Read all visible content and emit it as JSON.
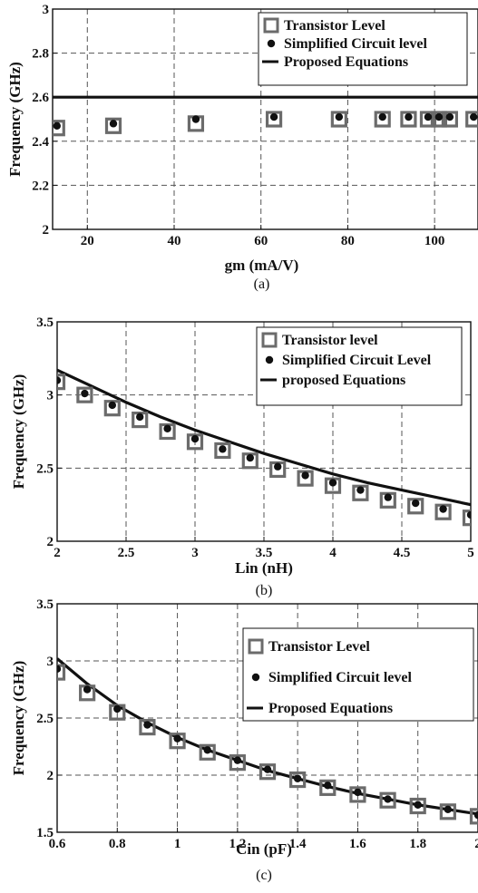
{
  "chart_data": [
    {
      "type": "scatter",
      "caption": "(a)",
      "xlabel": "gm (mA/V)",
      "ylabel": "Frequency (GHz)",
      "xlim": [
        12,
        110
      ],
      "ylim": [
        2,
        3
      ],
      "xticks": [
        20,
        40,
        60,
        80,
        100
      ],
      "yticks": [
        2,
        2.2,
        2.4,
        2.6,
        2.8,
        3
      ],
      "xtick_labels": [
        "20",
        "40",
        "60",
        "80",
        "100"
      ],
      "ytick_labels": [
        "2",
        "2.2",
        "2.4",
        "2.6",
        "2.8",
        "3"
      ],
      "grid": true,
      "legend_position": "top-right",
      "series": [
        {
          "name": "Transistor Level",
          "marker": "hollow-square",
          "color": "#6b6b6b",
          "x": [
            13,
            26,
            45,
            63,
            78,
            88,
            94,
            98.5,
            101,
            103.5,
            109
          ],
          "y": [
            2.46,
            2.47,
            2.48,
            2.5,
            2.5,
            2.5,
            2.5,
            2.5,
            2.5,
            2.5,
            2.5
          ]
        },
        {
          "name": "Simplified Circuit level",
          "marker": "dot",
          "color": "#111111",
          "x": [
            13,
            26,
            45,
            63,
            78,
            88,
            94,
            98.5,
            101,
            103.5,
            109
          ],
          "y": [
            2.47,
            2.48,
            2.5,
            2.51,
            2.51,
            2.51,
            2.51,
            2.51,
            2.51,
            2.51,
            2.51
          ]
        },
        {
          "name": "Proposed Equations",
          "marker": "line",
          "color": "#111111",
          "x": [
            12,
            110
          ],
          "y": [
            2.6,
            2.6
          ]
        }
      ]
    },
    {
      "type": "scatter",
      "caption": "(b)",
      "xlabel": "Lin (nH)",
      "ylabel": "Frequency (GHz)",
      "xlim": [
        2,
        5
      ],
      "ylim": [
        2,
        3.5
      ],
      "xticks": [
        2,
        2.5,
        3,
        3.5,
        4,
        4.5,
        5
      ],
      "yticks": [
        2,
        2.5,
        3,
        3.5
      ],
      "xtick_labels": [
        "2",
        "2.5",
        "3",
        "3.5",
        "4",
        "4.5",
        "5"
      ],
      "ytick_labels": [
        "2",
        "2.5",
        "3",
        "3.5"
      ],
      "grid": true,
      "legend_position": "top-right",
      "series": [
        {
          "name": "Transistor level",
          "marker": "hollow-square",
          "color": "#6b6b6b",
          "x": [
            2,
            2.2,
            2.4,
            2.6,
            2.8,
            3,
            3.2,
            3.4,
            3.6,
            3.8,
            4,
            4.2,
            4.4,
            4.6,
            4.8,
            5
          ],
          "y": [
            3.09,
            3.0,
            2.91,
            2.83,
            2.75,
            2.68,
            2.62,
            2.55,
            2.49,
            2.43,
            2.38,
            2.33,
            2.28,
            2.24,
            2.2,
            2.16
          ]
        },
        {
          "name": "Simplified Circuit Level",
          "marker": "dot",
          "color": "#111111",
          "x": [
            2,
            2.2,
            2.4,
            2.6,
            2.8,
            3,
            3.2,
            3.4,
            3.6,
            3.8,
            4,
            4.2,
            4.4,
            4.6,
            4.8,
            5
          ],
          "y": [
            3.1,
            3.01,
            2.93,
            2.85,
            2.77,
            2.7,
            2.63,
            2.57,
            2.51,
            2.45,
            2.4,
            2.35,
            2.3,
            2.26,
            2.22,
            2.18
          ]
        },
        {
          "name": "proposed Equations",
          "marker": "line",
          "color": "#111111",
          "x": [
            2,
            2.25,
            2.5,
            2.75,
            3,
            3.25,
            3.5,
            3.75,
            4,
            4.25,
            4.5,
            4.75,
            5
          ],
          "y": [
            3.17,
            3.06,
            2.95,
            2.85,
            2.76,
            2.68,
            2.6,
            2.53,
            2.46,
            2.4,
            2.35,
            2.3,
            2.25
          ]
        }
      ]
    },
    {
      "type": "scatter",
      "caption": "(c)",
      "xlabel": "Cin (pF)",
      "ylabel": "Frequency (GHz)",
      "xlim": [
        0.6,
        2
      ],
      "ylim": [
        1.5,
        3.5
      ],
      "xticks": [
        0.6,
        0.8,
        1,
        1.2,
        1.4,
        1.6,
        1.8,
        2
      ],
      "yticks": [
        1.5,
        2,
        2.5,
        3,
        3.5
      ],
      "xtick_labels": [
        "0.6",
        "0.8",
        "1",
        "1.2",
        "1.4",
        "1.6",
        "1.8",
        "2"
      ],
      "ytick_labels": [
        "1.5",
        "2",
        "2.5",
        "3",
        "3.5"
      ],
      "grid": true,
      "legend_position": "top-right",
      "series": [
        {
          "name": "Transistor Level",
          "marker": "hollow-square",
          "color": "#6b6b6b",
          "x": [
            0.6,
            0.7,
            0.8,
            0.9,
            1,
            1.1,
            1.2,
            1.3,
            1.4,
            1.5,
            1.6,
            1.7,
            1.8,
            1.9,
            2
          ],
          "y": [
            2.9,
            2.72,
            2.55,
            2.42,
            2.3,
            2.2,
            2.11,
            2.03,
            1.96,
            1.89,
            1.83,
            1.78,
            1.73,
            1.68,
            1.64
          ]
        },
        {
          "name": "Simplified Circuit level",
          "marker": "dot",
          "color": "#111111",
          "x": [
            0.6,
            0.7,
            0.8,
            0.9,
            1,
            1.1,
            1.2,
            1.3,
            1.4,
            1.5,
            1.6,
            1.7,
            1.8,
            1.9,
            2
          ],
          "y": [
            2.93,
            2.75,
            2.58,
            2.44,
            2.32,
            2.22,
            2.13,
            2.05,
            1.97,
            1.91,
            1.85,
            1.79,
            1.74,
            1.7,
            1.65
          ]
        },
        {
          "name": "Proposed Equations",
          "marker": "line",
          "color": "#111111",
          "x": [
            0.6,
            0.7,
            0.8,
            0.9,
            1,
            1.1,
            1.2,
            1.3,
            1.4,
            1.5,
            1.6,
            1.7,
            1.8,
            1.9,
            2
          ],
          "y": [
            3.02,
            2.8,
            2.61,
            2.46,
            2.33,
            2.22,
            2.13,
            2.04,
            1.97,
            1.9,
            1.84,
            1.79,
            1.74,
            1.7,
            1.66
          ]
        }
      ]
    }
  ]
}
